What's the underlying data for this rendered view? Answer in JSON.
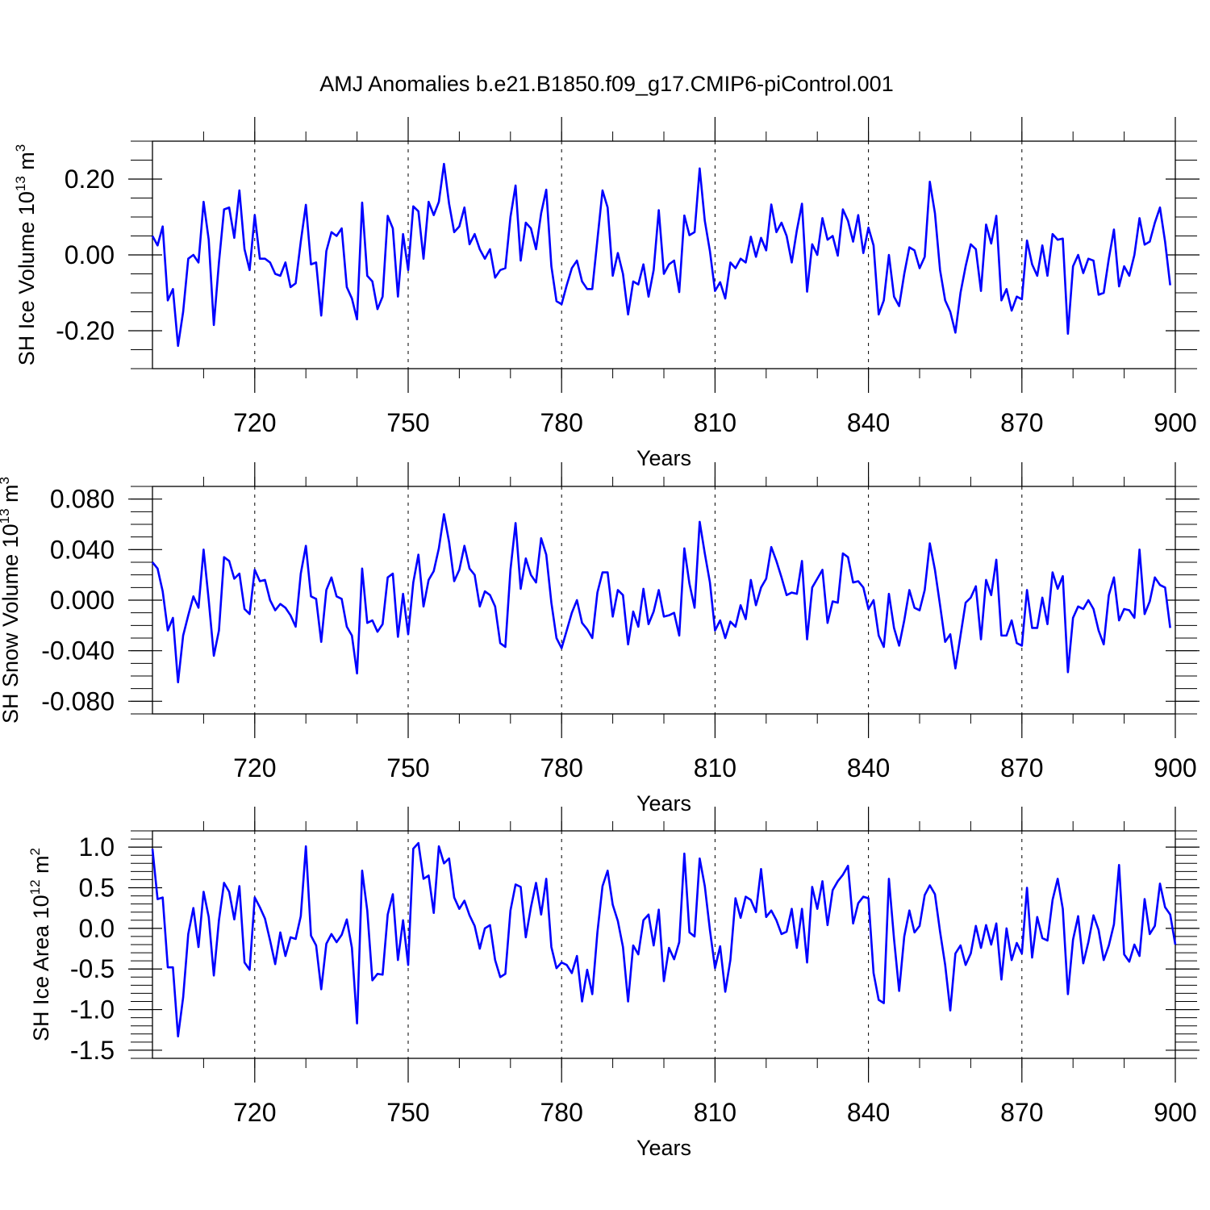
{
  "figure": {
    "title": "AMJ Anomalies b.e21.B1850.f09_g17.CMIP6-piControl.001",
    "line_color": "#0000ff"
  },
  "chart_data": [
    {
      "type": "line",
      "title": "AMJ Anomalies b.e21.B1850.f09_g17.CMIP6-piControl.001",
      "xlabel": "Years",
      "ylabel_main": "SH Ice Volume 10",
      "ylabel_exp": "13",
      "ylabel_unit": "m",
      "ylabel_unit_exp": "3",
      "xlim": [
        700,
        900
      ],
      "ylim": [
        -0.3,
        0.3
      ],
      "x_ticks": [
        720,
        750,
        780,
        810,
        840,
        870,
        900
      ],
      "y_ticks": [
        -0.2,
        0.0,
        0.2
      ],
      "y_tick_labels": [
        "-0.20",
        "0.00",
        "0.20"
      ],
      "y_minor_step": 0.05,
      "x_start": 700,
      "values": [
        0.05,
        0.025,
        0.075,
        -0.12,
        -0.09,
        -0.24,
        -0.15,
        -0.01,
        0.0,
        -0.02,
        0.14,
        0.04,
        -0.185,
        -0.02,
        0.12,
        0.125,
        0.045,
        0.17,
        0.015,
        -0.04,
        0.105,
        -0.01,
        -0.01,
        -0.02,
        -0.05,
        -0.055,
        -0.02,
        -0.085,
        -0.075,
        0.035,
        0.132,
        -0.025,
        -0.02,
        -0.16,
        0.01,
        0.06,
        0.05,
        0.07,
        -0.085,
        -0.115,
        -0.17,
        0.138,
        -0.055,
        -0.07,
        -0.143,
        -0.11,
        0.103,
        0.07,
        -0.11,
        0.055,
        -0.04,
        0.128,
        0.115,
        -0.01,
        0.14,
        0.105,
        0.14,
        0.24,
        0.135,
        0.06,
        0.075,
        0.125,
        0.028,
        0.055,
        0.015,
        -0.01,
        0.015,
        -0.06,
        -0.04,
        -0.035,
        0.1,
        0.183,
        -0.015,
        0.085,
        0.07,
        0.015,
        0.11,
        0.172,
        -0.03,
        -0.122,
        -0.13,
        -0.08,
        -0.035,
        -0.015,
        -0.07,
        -0.09,
        -0.09,
        0.04,
        0.17,
        0.125,
        -0.055,
        0.005,
        -0.05,
        -0.157,
        -0.07,
        -0.078,
        -0.025,
        -0.11,
        -0.04,
        0.118,
        -0.05,
        -0.025,
        -0.015,
        -0.098,
        0.104,
        0.052,
        0.06,
        0.228,
        0.09,
        0.01,
        -0.095,
        -0.072,
        -0.115,
        -0.02,
        -0.035,
        -0.01,
        -0.02,
        0.048,
        -0.005,
        0.045,
        0.012,
        0.133,
        0.06,
        0.085,
        0.05,
        -0.02,
        0.065,
        0.135,
        -0.097,
        0.028,
        0.0,
        0.097,
        0.04,
        0.05,
        -0.002,
        0.12,
        0.09,
        0.035,
        0.105,
        0.005,
        0.072,
        0.025,
        -0.157,
        -0.12,
        0.0,
        -0.11,
        -0.135,
        -0.05,
        0.02,
        0.012,
        -0.035,
        -0.005,
        0.193,
        0.11,
        -0.04,
        -0.12,
        -0.15,
        -0.205,
        -0.1,
        -0.03,
        0.028,
        0.015,
        -0.095,
        0.08,
        0.03,
        0.103,
        -0.12,
        -0.09,
        -0.147,
        -0.11,
        -0.117,
        0.038,
        -0.025,
        -0.055,
        0.025,
        -0.055,
        0.055,
        0.04,
        0.043,
        -0.208,
        -0.03,
        0.0,
        -0.048,
        -0.01,
        -0.015,
        -0.105,
        -0.1,
        -0.01,
        0.067,
        -0.083,
        -0.03,
        -0.055,
        0.0,
        0.097,
        0.027,
        0.035,
        0.085,
        0.125,
        0.035,
        -0.08
      ]
    },
    {
      "type": "line",
      "xlabel": "Years",
      "ylabel_main": "SH Snow Volume 10",
      "ylabel_exp": "13",
      "ylabel_unit": "m",
      "ylabel_unit_exp": "3",
      "xlim": [
        700,
        900
      ],
      "ylim": [
        -0.09,
        0.09
      ],
      "x_ticks": [
        720,
        750,
        780,
        810,
        840,
        870,
        900
      ],
      "y_ticks": [
        -0.08,
        -0.04,
        0.0,
        0.04,
        0.08
      ],
      "y_tick_labels": [
        "-0.080",
        "-0.040",
        "0.000",
        "0.040",
        "0.080"
      ],
      "y_minor_step": 0.01,
      "x_start": 700,
      "values": [
        0.03,
        0.025,
        0.007,
        -0.024,
        -0.014,
        -0.065,
        -0.028,
        -0.012,
        0.003,
        -0.006,
        0.04,
        0.0,
        -0.044,
        -0.024,
        0.034,
        0.031,
        0.017,
        0.021,
        -0.007,
        -0.011,
        0.024,
        0.015,
        0.016,
        0.0,
        -0.008,
        -0.003,
        -0.006,
        -0.012,
        -0.021,
        0.021,
        0.043,
        0.003,
        0.001,
        -0.033,
        0.008,
        0.018,
        0.003,
        0.001,
        -0.021,
        -0.028,
        -0.058,
        0.025,
        -0.018,
        -0.016,
        -0.025,
        -0.019,
        0.018,
        0.021,
        -0.029,
        0.005,
        -0.027,
        0.014,
        0.036,
        -0.005,
        0.016,
        0.023,
        0.041,
        0.068,
        0.046,
        0.015,
        0.024,
        0.043,
        0.025,
        0.02,
        -0.005,
        0.007,
        0.004,
        -0.005,
        -0.034,
        -0.037,
        0.024,
        0.061,
        0.009,
        0.033,
        0.02,
        0.014,
        0.049,
        0.036,
        -0.002,
        -0.03,
        -0.038,
        -0.024,
        -0.01,
        0.0,
        -0.018,
        -0.023,
        -0.03,
        0.006,
        0.022,
        0.022,
        -0.013,
        0.008,
        0.004,
        -0.035,
        -0.009,
        -0.021,
        0.009,
        -0.019,
        -0.009,
        0.008,
        -0.013,
        -0.012,
        -0.01,
        -0.028,
        0.041,
        0.013,
        -0.006,
        0.062,
        0.037,
        0.014,
        -0.024,
        -0.016,
        -0.03,
        -0.017,
        -0.021,
        -0.004,
        -0.015,
        0.016,
        -0.004,
        0.01,
        0.017,
        0.042,
        0.031,
        0.018,
        0.004,
        0.006,
        0.005,
        0.031,
        -0.031,
        0.01,
        0.017,
        0.024,
        -0.018,
        -0.001,
        -0.002,
        0.037,
        0.034,
        0.014,
        0.015,
        0.01,
        -0.007,
        0.0,
        -0.028,
        -0.037,
        0.005,
        -0.022,
        -0.036,
        -0.016,
        0.008,
        -0.006,
        -0.008,
        0.008,
        0.045,
        0.024,
        -0.004,
        -0.033,
        -0.027,
        -0.054,
        -0.028,
        -0.002,
        0.002,
        0.011,
        -0.031,
        0.016,
        0.004,
        0.032,
        -0.028,
        -0.028,
        -0.016,
        -0.034,
        -0.036,
        0.008,
        -0.022,
        -0.022,
        0.002,
        -0.019,
        0.022,
        0.009,
        0.019,
        -0.057,
        -0.014,
        -0.005,
        -0.007,
        0.0,
        -0.007,
        -0.024,
        -0.035,
        0.004,
        0.018,
        -0.016,
        -0.007,
        -0.008,
        -0.014,
        0.04,
        -0.011,
        -0.001,
        0.018,
        0.012,
        0.01,
        -0.022
      ]
    },
    {
      "type": "line",
      "xlabel": "Years",
      "ylabel_main": "SH Ice Area 10",
      "ylabel_exp": "12",
      "ylabel_unit": "m",
      "ylabel_unit_exp": "2",
      "xlim": [
        700,
        900
      ],
      "ylim": [
        -1.6,
        1.2
      ],
      "x_ticks": [
        720,
        750,
        780,
        810,
        840,
        870,
        900
      ],
      "y_ticks": [
        -1.5,
        -1.0,
        -0.5,
        0.0,
        0.5,
        1.0
      ],
      "y_tick_labels": [
        "-1.5",
        "-1.0",
        "-0.5",
        "0.0",
        "0.5",
        "1.0"
      ],
      "y_minor_step": 0.1,
      "x_start": 700,
      "values": [
        0.98,
        0.36,
        0.38,
        -0.48,
        -0.48,
        -1.33,
        -0.85,
        -0.07,
        0.25,
        -0.23,
        0.45,
        0.14,
        -0.58,
        0.1,
        0.56,
        0.45,
        0.11,
        0.52,
        -0.42,
        -0.51,
        0.38,
        0.26,
        0.12,
        -0.15,
        -0.44,
        -0.05,
        -0.34,
        -0.11,
        -0.13,
        0.15,
        1.01,
        -0.09,
        -0.21,
        -0.75,
        -0.19,
        -0.07,
        -0.17,
        -0.08,
        0.11,
        -0.24,
        -1.17,
        0.71,
        0.22,
        -0.64,
        -0.56,
        -0.57,
        0.17,
        0.42,
        -0.39,
        0.1,
        -0.45,
        0.98,
        1.05,
        0.61,
        0.65,
        0.19,
        1.01,
        0.8,
        0.86,
        0.38,
        0.24,
        0.34,
        0.16,
        0.03,
        -0.25,
        0.0,
        0.04,
        -0.39,
        -0.6,
        -0.56,
        0.22,
        0.54,
        0.51,
        -0.11,
        0.26,
        0.56,
        0.17,
        0.61,
        -0.23,
        -0.49,
        -0.42,
        -0.45,
        -0.55,
        -0.34,
        -0.9,
        -0.51,
        -0.81,
        -0.05,
        0.52,
        0.71,
        0.29,
        0.09,
        -0.23,
        -0.9,
        -0.21,
        -0.32,
        0.1,
        0.17,
        -0.21,
        0.23,
        -0.65,
        -0.24,
        -0.38,
        -0.17,
        0.92,
        -0.05,
        -0.1,
        0.86,
        0.52,
        -0.02,
        -0.49,
        -0.22,
        -0.78,
        -0.39,
        0.37,
        0.13,
        0.39,
        0.35,
        0.2,
        0.73,
        0.14,
        0.22,
        0.1,
        -0.07,
        -0.04,
        0.24,
        -0.24,
        0.24,
        -0.42,
        0.51,
        0.24,
        0.58,
        0.04,
        0.47,
        0.58,
        0.66,
        0.77,
        0.06,
        0.31,
        0.39,
        0.37,
        -0.55,
        -0.88,
        -0.92,
        0.61,
        -0.13,
        -0.77,
        -0.1,
        0.22,
        -0.05,
        0.03,
        0.41,
        0.53,
        0.42,
        -0.04,
        -0.45,
        -1.01,
        -0.31,
        -0.21,
        -0.45,
        -0.31,
        0.03,
        -0.24,
        0.04,
        -0.2,
        0.06,
        -0.63,
        0.0,
        -0.39,
        -0.18,
        -0.31,
        0.5,
        -0.36,
        0.14,
        -0.12,
        -0.15,
        0.35,
        0.61,
        0.24,
        -0.81,
        -0.14,
        0.15,
        -0.43,
        -0.17,
        0.16,
        -0.02,
        -0.39,
        -0.21,
        0.05,
        0.78,
        -0.32,
        -0.41,
        -0.2,
        -0.34,
        0.36,
        -0.07,
        0.03,
        0.55,
        0.26,
        0.17,
        -0.2
      ]
    }
  ]
}
